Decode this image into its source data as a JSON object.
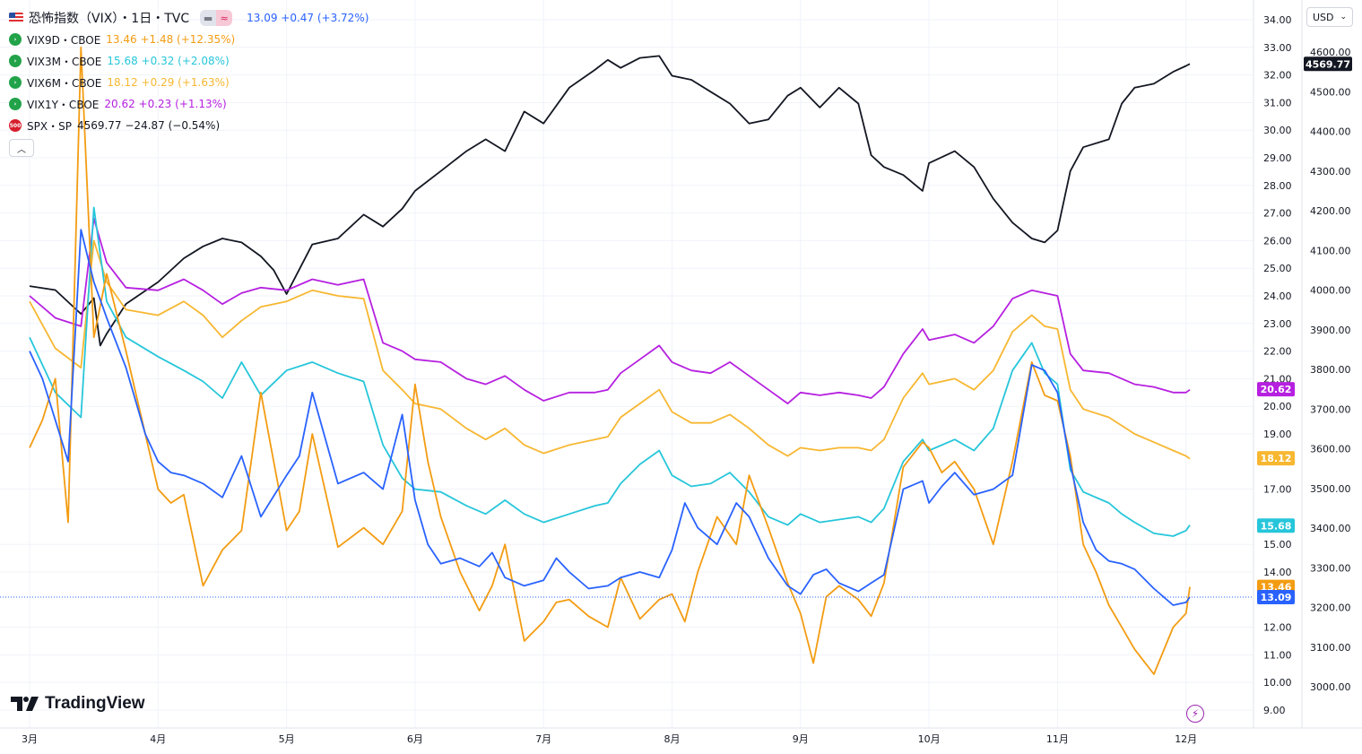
{
  "header": {
    "title": "恐怖指数（VIX）・1日・TVC",
    "vix_value": "13.09 +0.47 (+3.72%)",
    "vix_color": "#2962ff",
    "flag_icon": "us-flag-icon",
    "pill_icons": [
      "minus-icon",
      "approx-icon"
    ]
  },
  "legend": [
    {
      "symbol": "VIX9D・CBOE",
      "values": "13.46 +1.48 (+12.35%)",
      "color": "#f39c12",
      "icon": "green-badge-icon"
    },
    {
      "symbol": "VIX3M・CBOE",
      "values": "15.68 +0.32 (+2.08%)",
      "color": "#26c6da",
      "icon": "green-badge-icon"
    },
    {
      "symbol": "VIX6M・CBOE",
      "values": "18.12 +0.29 (+1.63%)",
      "color": "#f7b731",
      "icon": "green-badge-icon"
    },
    {
      "symbol": "VIX1Y・CBOE",
      "values": "20.62 +0.23 (+1.13%)",
      "color": "#b620e0",
      "icon": "green-badge-icon"
    },
    {
      "symbol": "SPX・SP",
      "values": "4569.77 −24.87 (−0.54%)",
      "color": "#131722",
      "icon": "sp500-badge-icon",
      "badge": "500"
    }
  ],
  "toolbar": {
    "currency": "USD",
    "collapse_icon": "chevron-up-icon",
    "dropdown_icon": "chevron-down-icon"
  },
  "brand": {
    "name": "TradingView",
    "logo_icon": "tradingview-logo-icon"
  },
  "footer": {
    "bolt_icon": "lightning-icon"
  },
  "chart_data": {
    "type": "line",
    "x_ticks": [
      "3月",
      "4月",
      "5月",
      "6月",
      "7月",
      "8月",
      "9月",
      "10月",
      "11月",
      "12月"
    ],
    "y_left_ticks": [
      "34.00",
      "33.00",
      "32.00",
      "31.00",
      "30.00",
      "29.00",
      "28.00",
      "27.00",
      "26.00",
      "25.00",
      "24.00",
      "23.00",
      "22.00",
      "21.00",
      "20.00",
      "19.00",
      "17.00",
      "15.00",
      "14.00",
      "12.00",
      "11.00",
      "10.00",
      "9.00"
    ],
    "y_right_ticks": [
      "4600.00",
      "4500.00",
      "4400.00",
      "4300.00",
      "4200.00",
      "4100.00",
      "4000.00",
      "3900.00",
      "3800.00",
      "3700.00",
      "3600.00",
      "3500.00",
      "3400.00",
      "3300.00",
      "3200.00",
      "3100.00",
      "3000.00"
    ],
    "ylim_left": [
      8.5,
      34.5
    ],
    "ylim_right": [
      2950,
      4650
    ],
    "x_months": [
      3,
      12.03
    ],
    "grid": true,
    "last_labels": [
      {
        "text": "4569.77",
        "color": "#131722"
      },
      {
        "text": "20.62",
        "color": "#b620e0"
      },
      {
        "text": "18.12",
        "color": "#f7b731"
      },
      {
        "text": "15.68",
        "color": "#26c6da"
      },
      {
        "text": "13.46",
        "color": "#f39c12"
      },
      {
        "text": "13.09",
        "color": "#2962ff"
      }
    ],
    "series": [
      {
        "name": "SPX・SP",
        "axis": "right",
        "color": "#131722",
        "x": [
          3,
          3.2,
          3.4,
          3.5,
          3.55,
          3.6,
          3.75,
          4,
          4.2,
          4.35,
          4.5,
          4.65,
          4.8,
          4.9,
          5,
          5.2,
          5.4,
          5.6,
          5.75,
          5.9,
          6,
          6.2,
          6.4,
          6.55,
          6.7,
          6.85,
          7,
          7.2,
          7.4,
          7.5,
          7.6,
          7.75,
          7.9,
          8,
          8.15,
          8.3,
          8.45,
          8.6,
          8.75,
          8.9,
          9,
          9.15,
          9.3,
          9.45,
          9.55,
          9.65,
          9.8,
          9.95,
          10,
          10.2,
          10.35,
          10.5,
          10.65,
          10.8,
          10.9,
          11,
          11.1,
          11.2,
          11.4,
          11.5,
          11.6,
          11.75,
          11.9,
          12,
          12.03
        ],
        "y": [
          4010,
          4000,
          3940,
          3980,
          3860,
          3890,
          3965,
          4020,
          4080,
          4110,
          4130,
          4120,
          4085,
          4050,
          3990,
          4115,
          4130,
          4190,
          4160,
          4205,
          4250,
          4300,
          4350,
          4380,
          4350,
          4450,
          4420,
          4510,
          4555,
          4580,
          4560,
          4585,
          4590,
          4540,
          4530,
          4500,
          4470,
          4420,
          4430,
          4490,
          4510,
          4460,
          4510,
          4470,
          4340,
          4310,
          4290,
          4250,
          4320,
          4350,
          4310,
          4230,
          4170,
          4130,
          4120,
          4150,
          4300,
          4360,
          4380,
          4470,
          4510,
          4520,
          4550,
          4565,
          4570
        ]
      },
      {
        "name": "VIX1Y・CBOE",
        "axis": "left",
        "color": "#b620e0",
        "x": [
          3,
          3.2,
          3.4,
          3.5,
          3.6,
          3.75,
          4,
          4.2,
          4.35,
          4.5,
          4.65,
          4.8,
          5,
          5.2,
          5.4,
          5.6,
          5.75,
          5.9,
          6,
          6.2,
          6.4,
          6.55,
          6.7,
          6.85,
          7,
          7.2,
          7.4,
          7.5,
          7.6,
          7.75,
          7.9,
          8,
          8.15,
          8.3,
          8.45,
          8.6,
          8.75,
          8.9,
          9,
          9.15,
          9.3,
          9.45,
          9.55,
          9.65,
          9.8,
          9.95,
          10,
          10.2,
          10.35,
          10.5,
          10.65,
          10.8,
          10.9,
          11,
          11.1,
          11.2,
          11.4,
          11.5,
          11.6,
          11.75,
          11.9,
          12,
          12.03
        ],
        "y": [
          24.0,
          23.2,
          22.9,
          26.8,
          25.2,
          24.3,
          24.2,
          24.6,
          24.2,
          23.7,
          24.1,
          24.3,
          24.2,
          24.6,
          24.4,
          24.6,
          22.3,
          22.0,
          21.7,
          21.6,
          21.0,
          20.8,
          21.1,
          20.6,
          20.2,
          20.5,
          20.5,
          20.6,
          21.2,
          21.7,
          22.2,
          21.6,
          21.3,
          21.2,
          21.6,
          21.1,
          20.6,
          20.1,
          20.5,
          20.4,
          20.5,
          20.4,
          20.3,
          20.7,
          21.9,
          22.8,
          22.4,
          22.6,
          22.3,
          22.9,
          23.9,
          24.2,
          24.1,
          24.0,
          21.9,
          21.3,
          21.2,
          21.0,
          20.8,
          20.7,
          20.5,
          20.5,
          20.6
        ]
      },
      {
        "name": "VIX6M・CBOE",
        "axis": "left",
        "color": "#f7b731",
        "x": [
          3,
          3.2,
          3.4,
          3.5,
          3.6,
          3.75,
          4,
          4.2,
          4.35,
          4.5,
          4.65,
          4.8,
          5,
          5.2,
          5.4,
          5.6,
          5.75,
          5.9,
          6,
          6.2,
          6.4,
          6.55,
          6.7,
          6.85,
          7,
          7.2,
          7.4,
          7.5,
          7.6,
          7.75,
          7.9,
          8,
          8.15,
          8.3,
          8.45,
          8.6,
          8.75,
          8.9,
          9,
          9.15,
          9.3,
          9.45,
          9.55,
          9.65,
          9.8,
          9.95,
          10,
          10.2,
          10.35,
          10.5,
          10.65,
          10.8,
          10.9,
          11,
          11.1,
          11.2,
          11.4,
          11.5,
          11.6,
          11.75,
          11.9,
          12,
          12.03
        ],
        "y": [
          23.8,
          22.1,
          21.4,
          26.0,
          24.5,
          23.5,
          23.3,
          23.8,
          23.3,
          22.5,
          23.1,
          23.6,
          23.8,
          24.2,
          24.0,
          23.9,
          21.3,
          20.6,
          20.1,
          19.9,
          19.2,
          18.8,
          19.2,
          18.6,
          18.3,
          18.6,
          18.8,
          18.9,
          19.6,
          20.1,
          20.6,
          19.8,
          19.4,
          19.4,
          19.7,
          19.2,
          18.6,
          18.2,
          18.5,
          18.4,
          18.5,
          18.5,
          18.4,
          18.8,
          20.3,
          21.2,
          20.8,
          21.0,
          20.6,
          21.3,
          22.7,
          23.3,
          22.9,
          22.8,
          20.6,
          19.9,
          19.6,
          19.3,
          19.0,
          18.7,
          18.4,
          18.2,
          18.1
        ]
      },
      {
        "name": "VIX3M・CBOE",
        "axis": "left",
        "color": "#26c6da",
        "x": [
          3,
          3.2,
          3.4,
          3.5,
          3.6,
          3.75,
          4,
          4.2,
          4.35,
          4.5,
          4.65,
          4.8,
          5,
          5.2,
          5.4,
          5.6,
          5.75,
          5.9,
          6,
          6.2,
          6.4,
          6.55,
          6.7,
          6.85,
          7,
          7.2,
          7.4,
          7.5,
          7.6,
          7.75,
          7.9,
          8,
          8.15,
          8.3,
          8.45,
          8.6,
          8.75,
          8.9,
          9,
          9.15,
          9.3,
          9.45,
          9.55,
          9.65,
          9.8,
          9.95,
          10,
          10.2,
          10.35,
          10.5,
          10.65,
          10.8,
          10.9,
          11,
          11.1,
          11.2,
          11.4,
          11.5,
          11.6,
          11.75,
          11.9,
          12,
          12.03
        ],
        "y": [
          22.5,
          20.5,
          19.6,
          27.2,
          23.8,
          22.5,
          21.8,
          21.3,
          20.9,
          20.3,
          21.6,
          20.4,
          21.3,
          21.6,
          21.2,
          20.9,
          18.6,
          17.4,
          17.0,
          16.9,
          16.4,
          16.1,
          16.6,
          16.1,
          15.8,
          16.1,
          16.4,
          16.5,
          17.2,
          17.9,
          18.4,
          17.5,
          17.1,
          17.2,
          17.6,
          16.9,
          16.0,
          15.7,
          16.1,
          15.8,
          15.9,
          16.0,
          15.8,
          16.3,
          18.0,
          18.8,
          18.4,
          18.8,
          18.4,
          19.2,
          21.3,
          22.3,
          21.2,
          20.8,
          17.7,
          16.9,
          16.5,
          16.1,
          15.8,
          15.4,
          15.3,
          15.5,
          15.7
        ]
      },
      {
        "name": "VIX9D・CBOE",
        "axis": "left",
        "color": "#f39c12",
        "x": [
          3,
          3.1,
          3.2,
          3.3,
          3.4,
          3.5,
          3.6,
          3.75,
          3.9,
          4,
          4.1,
          4.2,
          4.35,
          4.5,
          4.65,
          4.8,
          5,
          5.1,
          5.2,
          5.4,
          5.6,
          5.75,
          5.9,
          6,
          6.1,
          6.2,
          6.35,
          6.5,
          6.6,
          6.7,
          6.85,
          7,
          7.1,
          7.2,
          7.35,
          7.5,
          7.6,
          7.75,
          7.9,
          8,
          8.1,
          8.2,
          8.35,
          8.5,
          8.6,
          8.75,
          8.9,
          9,
          9.1,
          9.2,
          9.3,
          9.45,
          9.55,
          9.65,
          9.8,
          9.95,
          10,
          10.1,
          10.2,
          10.35,
          10.5,
          10.65,
          10.8,
          10.9,
          11,
          11.1,
          11.2,
          11.3,
          11.4,
          11.5,
          11.6,
          11.75,
          11.9,
          12,
          12.03
        ],
        "y": [
          18.5,
          19.5,
          21.0,
          15.8,
          33.0,
          22.5,
          24.8,
          22.0,
          19.0,
          17.0,
          16.5,
          16.8,
          13.5,
          14.8,
          15.5,
          20.5,
          15.5,
          16.2,
          19.0,
          14.9,
          15.6,
          15.0,
          16.2,
          20.8,
          18.0,
          16.0,
          14.0,
          12.6,
          13.5,
          15.0,
          11.5,
          12.2,
          12.9,
          13.0,
          12.4,
          12.0,
          13.8,
          12.3,
          13.0,
          13.2,
          12.2,
          14.0,
          16.0,
          15.0,
          17.5,
          15.6,
          13.6,
          12.5,
          10.7,
          13.1,
          13.5,
          13.0,
          12.4,
          13.6,
          17.8,
          18.7,
          18.5,
          17.6,
          18.0,
          17.0,
          15.0,
          18.0,
          21.6,
          20.4,
          20.2,
          18.2,
          15.0,
          14.0,
          12.8,
          12.0,
          11.2,
          10.3,
          12.0,
          12.5,
          13.46
        ]
      },
      {
        "name": "恐怖指数（VIX）",
        "axis": "left",
        "color": "#2962ff",
        "x": [
          3,
          3.1,
          3.2,
          3.3,
          3.4,
          3.5,
          3.6,
          3.75,
          3.9,
          4,
          4.1,
          4.2,
          4.35,
          4.5,
          4.65,
          4.8,
          5,
          5.1,
          5.2,
          5.4,
          5.6,
          5.75,
          5.9,
          6,
          6.1,
          6.2,
          6.35,
          6.5,
          6.6,
          6.7,
          6.85,
          7,
          7.1,
          7.2,
          7.35,
          7.5,
          7.6,
          7.75,
          7.9,
          8,
          8.1,
          8.2,
          8.35,
          8.5,
          8.6,
          8.75,
          8.9,
          9,
          9.1,
          9.2,
          9.3,
          9.45,
          9.55,
          9.65,
          9.8,
          9.95,
          10,
          10.1,
          10.2,
          10.35,
          10.5,
          10.65,
          10.8,
          10.9,
          11,
          11.1,
          11.2,
          11.3,
          11.4,
          11.5,
          11.6,
          11.75,
          11.9,
          12,
          12.03
        ],
        "y": [
          22.0,
          21.0,
          19.5,
          18.0,
          26.4,
          24.5,
          23.2,
          21.4,
          19.0,
          18.0,
          17.6,
          17.5,
          17.2,
          16.7,
          18.2,
          16.0,
          17.5,
          18.2,
          20.5,
          17.2,
          17.6,
          17.0,
          19.7,
          16.6,
          15.0,
          14.3,
          14.5,
          14.2,
          14.7,
          13.8,
          13.5,
          13.7,
          14.5,
          14.0,
          13.4,
          13.5,
          13.8,
          14.0,
          13.8,
          14.8,
          16.5,
          15.6,
          15.0,
          16.5,
          16.0,
          14.5,
          13.5,
          13.2,
          13.9,
          14.1,
          13.6,
          13.3,
          13.6,
          13.9,
          17.0,
          17.3,
          16.5,
          17.1,
          17.6,
          16.8,
          17.0,
          17.5,
          21.5,
          21.3,
          20.5,
          17.9,
          15.8,
          14.8,
          14.4,
          14.3,
          14.1,
          13.4,
          12.8,
          12.9,
          13.09
        ]
      }
    ]
  }
}
